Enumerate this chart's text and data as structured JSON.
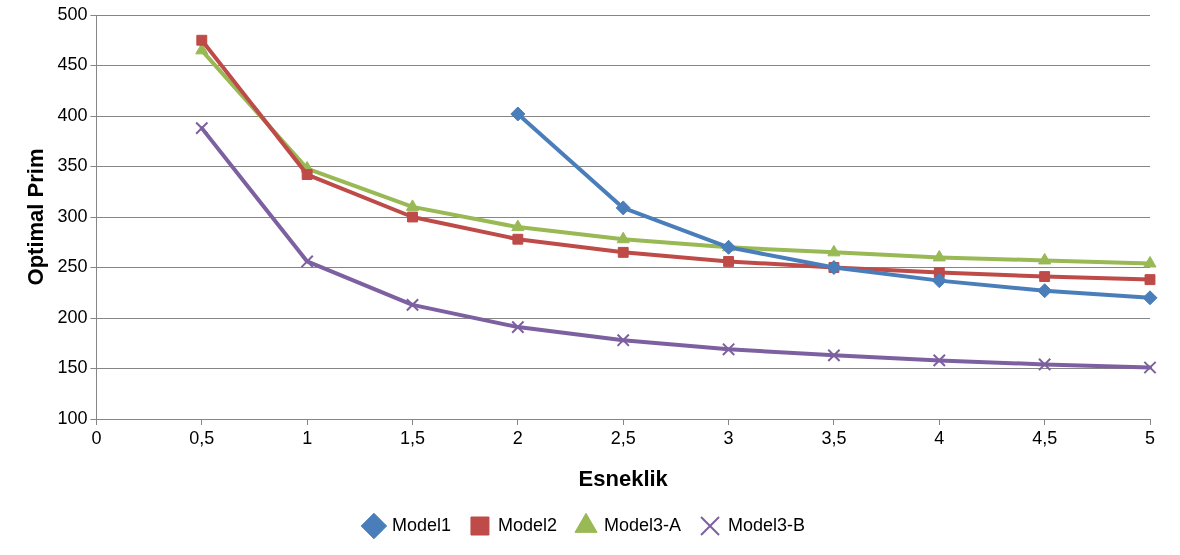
{
  "chart_data": {
    "type": "line",
    "xlabel": "Esneklik",
    "ylabel": "Optimal Prim",
    "xlim": [
      0,
      5
    ],
    "xticks": [
      0,
      {
        "value": 0.5,
        "label": "0,5"
      },
      1,
      {
        "value": 1.5,
        "label": "1,5"
      },
      2,
      {
        "value": 2.5,
        "label": "2,5"
      },
      3,
      {
        "value": 3.5,
        "label": "3,5"
      },
      4,
      {
        "value": 4.5,
        "label": "4,5"
      },
      5
    ],
    "ylim": [
      100,
      500
    ],
    "yticks": [
      100,
      150,
      200,
      250,
      300,
      350,
      400,
      450,
      500
    ],
    "grid": "y",
    "legend": "bottom",
    "line_style": "solid",
    "series": [
      {
        "name": "Model1",
        "color": "#4a7ebb",
        "marker": "diamond",
        "x": [
          2,
          2.5,
          3,
          3.5,
          4,
          4.5,
          5
        ],
        "values": [
          402,
          309,
          270,
          250,
          237,
          227,
          220
        ]
      },
      {
        "name": "Model2",
        "color": "#be4b48",
        "marker": "square",
        "x": [
          0.5,
          1,
          1.5,
          2,
          2.5,
          3,
          3.5,
          4,
          4.5,
          5
        ],
        "values": [
          475,
          342,
          300,
          278,
          265,
          256,
          250,
          245,
          241,
          238
        ]
      },
      {
        "name": "Model3-A",
        "color": "#98b954",
        "marker": "triangle",
        "x": [
          0.5,
          1,
          1.5,
          2,
          2.5,
          3,
          3.5,
          4,
          4.5,
          5
        ],
        "values": [
          465,
          348,
          310,
          290,
          278,
          270,
          265,
          260,
          257,
          254
        ]
      },
      {
        "name": "Model3-B",
        "color": "#7d60a0",
        "marker": "cross",
        "x": [
          0.5,
          1,
          1.5,
          2,
          2.5,
          3,
          3.5,
          4,
          4.5,
          5
        ],
        "values": [
          388,
          256,
          213,
          191,
          178,
          169,
          163,
          158,
          154,
          151
        ]
      }
    ]
  }
}
